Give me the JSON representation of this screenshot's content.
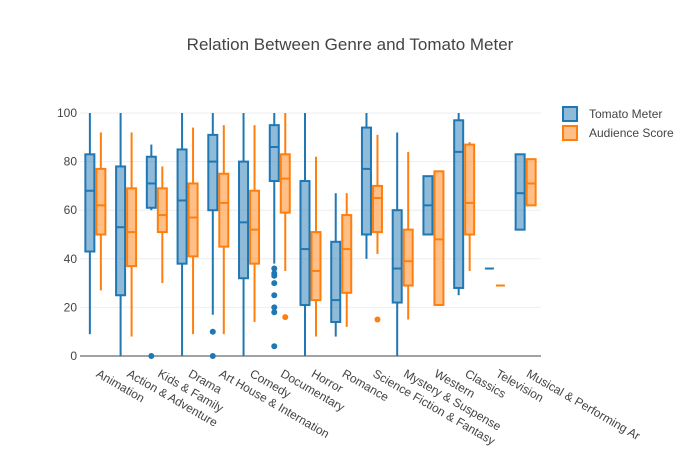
{
  "chart_data": {
    "type": "box",
    "title": "Relation Between Genre and Tomato Meter",
    "xlabel": "",
    "ylabel": "",
    "ylim": [
      0,
      100
    ],
    "yticks": [
      0,
      20,
      40,
      60,
      80,
      100
    ],
    "grid": true,
    "legend_position": "top-right",
    "categories": [
      "Animation",
      "Action & Adventure",
      "Kids & Family",
      "Drama",
      "Art House & International",
      "Comedy",
      "Documentary",
      "Horror",
      "Romance",
      "Science Fiction & Fantasy",
      "Mystery & Suspense",
      "Western",
      "Classics",
      "Television",
      "Musical & Performing Arts"
    ],
    "category_labels": [
      "Animation",
      "Action & Adventure",
      "Kids & Family",
      "Drama",
      "Art House & Internation",
      "Comedy",
      "Documentary",
      "Horror",
      "Romance",
      "Science Fiction & Fantasy",
      "Mystery & Suspense",
      "Western",
      "Classics",
      "Television",
      "Musical & Performing Ar"
    ],
    "series": [
      {
        "name": "Tomato Meter",
        "color": "#1f77b4",
        "boxes": [
          {
            "low": 9,
            "q1": 43,
            "median": 68,
            "q3": 83,
            "high": 100,
            "outliers": []
          },
          {
            "low": 0,
            "q1": 25,
            "median": 53,
            "q3": 78,
            "high": 100,
            "outliers": []
          },
          {
            "low": 60,
            "q1": 61,
            "median": 71,
            "q3": 82,
            "high": 87,
            "outliers": [
              0
            ]
          },
          {
            "low": 0,
            "q1": 38,
            "median": 64,
            "q3": 85,
            "high": 100,
            "outliers": []
          },
          {
            "low": 17,
            "q1": 60,
            "median": 80,
            "q3": 91,
            "high": 100,
            "outliers": [
              10,
              0
            ]
          },
          {
            "low": 0,
            "q1": 32,
            "median": 55,
            "q3": 80,
            "high": 100,
            "outliers": []
          },
          {
            "low": 38,
            "q1": 72,
            "median": 86,
            "q3": 95,
            "high": 100,
            "outliers": [
              36,
              34,
              33,
              30,
              25,
              20,
              18,
              4
            ]
          },
          {
            "low": 0,
            "q1": 21,
            "median": 44,
            "q3": 72,
            "high": 100,
            "outliers": []
          },
          {
            "low": 8,
            "q1": 14,
            "median": 23,
            "q3": 47,
            "high": 67,
            "outliers": []
          },
          {
            "low": 40,
            "q1": 50,
            "median": 77,
            "q3": 94,
            "high": 100,
            "outliers": []
          },
          {
            "low": 0,
            "q1": 22,
            "median": 36,
            "q3": 60,
            "high": 92,
            "outliers": []
          },
          {
            "low": 50,
            "q1": 50,
            "median": 62,
            "q3": 74,
            "high": 74,
            "outliers": []
          },
          {
            "low": 25,
            "q1": 28,
            "median": 84,
            "q3": 97,
            "high": 100,
            "outliers": []
          },
          {
            "low": 36,
            "q1": 36,
            "median": 36,
            "q3": 36,
            "high": 36,
            "outliers": []
          },
          {
            "low": 52,
            "q1": 52,
            "median": 67,
            "q3": 83,
            "high": 83,
            "outliers": []
          }
        ]
      },
      {
        "name": "Audience Score",
        "color": "#ff7f0e",
        "boxes": [
          {
            "low": 27,
            "q1": 50,
            "median": 62,
            "q3": 77,
            "high": 92,
            "outliers": []
          },
          {
            "low": 8,
            "q1": 37,
            "median": 51,
            "q3": 69,
            "high": 92,
            "outliers": []
          },
          {
            "low": 30,
            "q1": 51,
            "median": 58,
            "q3": 69,
            "high": 78,
            "outliers": []
          },
          {
            "low": 9,
            "q1": 41,
            "median": 57,
            "q3": 71,
            "high": 94,
            "outliers": []
          },
          {
            "low": 9,
            "q1": 45,
            "median": 63,
            "q3": 75,
            "high": 95,
            "outliers": []
          },
          {
            "low": 14,
            "q1": 38,
            "median": 52,
            "q3": 68,
            "high": 95,
            "outliers": []
          },
          {
            "low": 35,
            "q1": 59,
            "median": 73,
            "q3": 83,
            "high": 100,
            "outliers": [
              16
            ]
          },
          {
            "low": 8,
            "q1": 23,
            "median": 35,
            "q3": 51,
            "high": 82,
            "outliers": []
          },
          {
            "low": 12,
            "q1": 26,
            "median": 44,
            "q3": 58,
            "high": 67,
            "outliers": []
          },
          {
            "low": 42,
            "q1": 51,
            "median": 65,
            "q3": 70,
            "high": 91,
            "outliers": [
              15
            ]
          },
          {
            "low": 15,
            "q1": 29,
            "median": 39,
            "q3": 52,
            "high": 84,
            "outliers": []
          },
          {
            "low": 21,
            "q1": 21,
            "median": 48,
            "q3": 76,
            "high": 76,
            "outliers": []
          },
          {
            "low": 35,
            "q1": 50,
            "median": 63,
            "q3": 87,
            "high": 88,
            "outliers": []
          },
          {
            "low": 29,
            "q1": 29,
            "median": 29,
            "q3": 29,
            "high": 29,
            "outliers": []
          },
          {
            "low": 62,
            "q1": 62,
            "median": 71,
            "q3": 81,
            "high": 81,
            "outliers": []
          }
        ]
      }
    ]
  }
}
